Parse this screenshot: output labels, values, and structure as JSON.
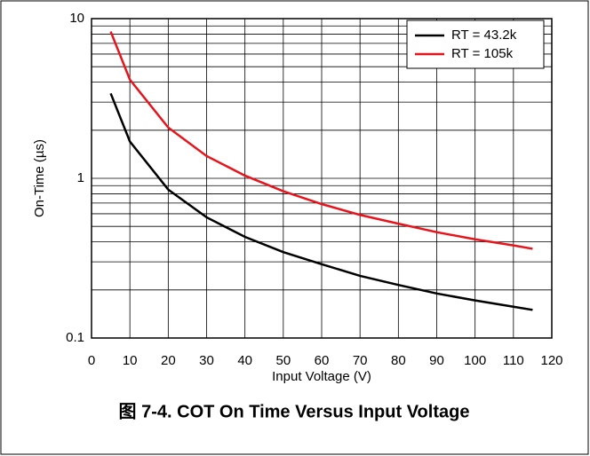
{
  "chart_data": {
    "type": "line",
    "title": "图 7-4. COT On Time Versus Input Voltage",
    "xlabel": "Input Voltage (V)",
    "ylabel": "On-Time (µs)",
    "x": [
      5,
      10,
      20,
      30,
      40,
      50,
      60,
      70,
      80,
      90,
      100,
      110,
      115
    ],
    "series": [
      {
        "name": "RT = 43.2k",
        "color": "#000000",
        "values": [
          3.4,
          1.7,
          0.85,
          0.57,
          0.43,
          0.345,
          0.29,
          0.245,
          0.215,
          0.19,
          0.172,
          0.157,
          0.15
        ]
      },
      {
        "name": "RT = 105k",
        "color": "#e8141c",
        "values": [
          8.3,
          4.15,
          2.08,
          1.38,
          1.04,
          0.83,
          0.69,
          0.59,
          0.52,
          0.46,
          0.415,
          0.38,
          0.362
        ]
      }
    ],
    "xlim": [
      0,
      120
    ],
    "xticks": [
      0,
      10,
      20,
      30,
      40,
      50,
      60,
      70,
      80,
      90,
      100,
      110,
      120
    ],
    "ylim": [
      0.1,
      10
    ],
    "yticks": [
      0.1,
      1,
      10
    ],
    "yminorticks": [
      0.2,
      0.3,
      0.4,
      0.5,
      0.6,
      0.7,
      0.8,
      0.9,
      2,
      3,
      4,
      5,
      6,
      7,
      8,
      9
    ],
    "ylog": true,
    "grid": true,
    "legend": "upper right"
  }
}
